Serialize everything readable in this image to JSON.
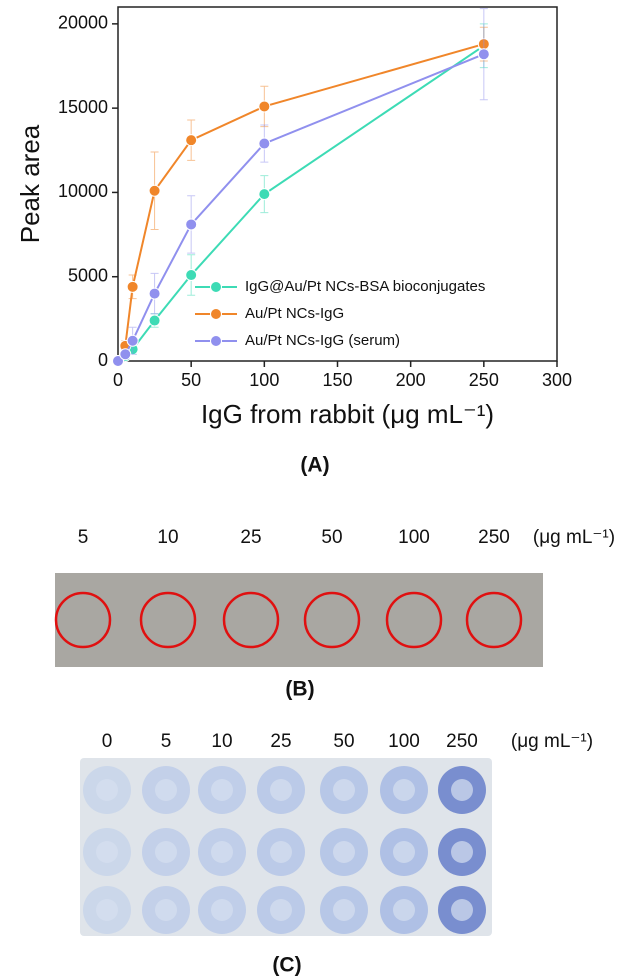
{
  "chart_data": {
    "type": "line",
    "x": [
      0,
      5,
      10,
      25,
      50,
      100,
      250
    ],
    "xlim": [
      0,
      300
    ],
    "xticks": [
      0,
      50,
      100,
      150,
      200,
      250,
      300
    ],
    "ylim": [
      0,
      21000
    ],
    "yticks": [
      0,
      5000,
      10000,
      15000,
      20000
    ],
    "xlabel": "IgG from rabbit (μg mL⁻¹)",
    "ylabel": "Peak area",
    "panel_label": "(A)",
    "legend": "lower right",
    "series": [
      {
        "name": "IgG@Au/Pt NCs-BSA bioconjugates",
        "color": "#3ddbb5",
        "values": [
          0,
          300,
          700,
          2400,
          5100,
          9900,
          18700
        ],
        "errors": [
          0,
          200,
          300,
          400,
          1200,
          1100,
          1300
        ]
      },
      {
        "name": "Au/Pt NCs-IgG",
        "color": "#f0862a",
        "values": [
          0,
          900,
          4400,
          10100,
          13100,
          15100,
          18800
        ],
        "errors": [
          0,
          300,
          700,
          2300,
          1200,
          1200,
          1000
        ]
      },
      {
        "name": "Au/Pt NCs-IgG (serum)",
        "color": "#9090ee",
        "values": [
          0,
          400,
          1200,
          4000,
          8100,
          12900,
          18200
        ],
        "errors": [
          0,
          300,
          800,
          1200,
          1700,
          1100,
          2700
        ]
      }
    ]
  },
  "panel_b": {
    "label": "(B)",
    "concentrations": [
      "5",
      "10",
      "25",
      "50",
      "100",
      "250"
    ],
    "unit": "(μg mL⁻¹)"
  },
  "panel_c": {
    "label": "(C)",
    "concentrations": [
      "0",
      "5",
      "10",
      "25",
      "50",
      "100",
      "250"
    ],
    "unit": "(μg mL⁻¹)"
  }
}
